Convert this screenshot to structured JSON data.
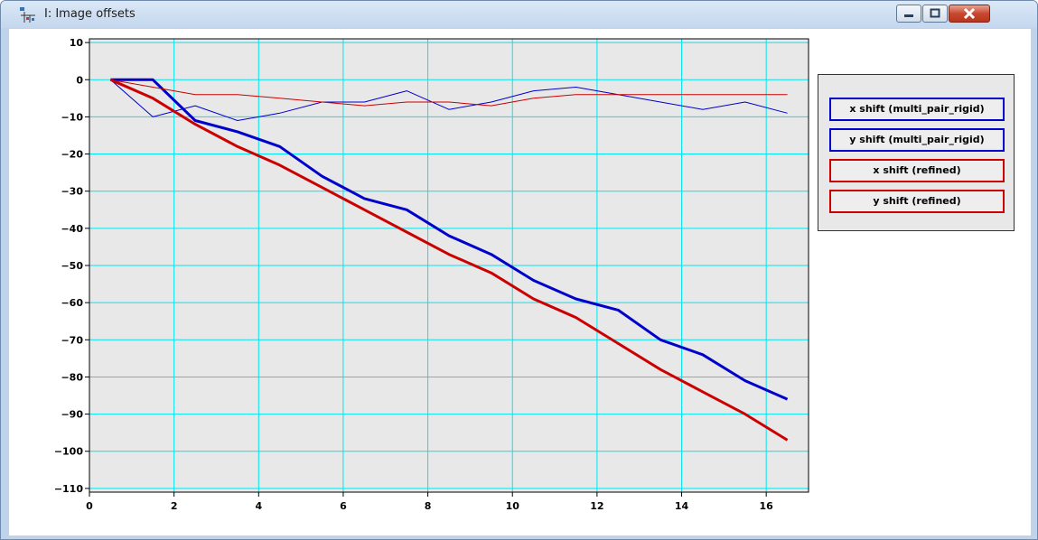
{
  "window": {
    "title": "I: Image offsets"
  },
  "colors": {
    "plot_background": "#e8e8e8",
    "grid": "#00e6f0",
    "blue": "#0000cc",
    "red": "#cc0000"
  },
  "chart_data": {
    "type": "line",
    "title": "",
    "xlabel": "",
    "ylabel": "",
    "xlim": [
      0,
      17
    ],
    "ylim": [
      -111,
      11
    ],
    "grid": true,
    "legend_position": "right",
    "x_ticks": [
      "0",
      "2",
      "4",
      "6",
      "8",
      "10",
      "12",
      "14",
      "16"
    ],
    "y_ticks": [
      "10",
      "0",
      "−10",
      "−20",
      "−30",
      "−40",
      "−50",
      "−60",
      "−70",
      "−80",
      "−90",
      "−100",
      "−110"
    ],
    "x_tick_values": [
      0,
      2,
      4,
      6,
      8,
      10,
      12,
      14,
      16
    ],
    "y_tick_values": [
      10,
      0,
      -10,
      -20,
      -30,
      -40,
      -50,
      -60,
      -70,
      -80,
      -90,
      -100,
      -110
    ],
    "x": [
      0.5,
      1.5,
      2.5,
      3.5,
      4.5,
      5.5,
      6.5,
      7.5,
      8.5,
      9.5,
      10.5,
      11.5,
      12.5,
      13.5,
      14.5,
      15.5,
      16.5
    ],
    "series": [
      {
        "name": "x shift (multi_pair_rigid)",
        "color": "#0000cc",
        "width": 1,
        "values": [
          0,
          -10,
          -7,
          -11,
          -9,
          -6,
          -6,
          -3,
          -8,
          -6,
          -3,
          -2,
          -4,
          -6,
          -8,
          -6,
          -9
        ]
      },
      {
        "name": "y shift (multi_pair_rigid)",
        "color": "#0000cc",
        "width": 3,
        "values": [
          0,
          0,
          -11,
          -14,
          -18,
          -26,
          -32,
          -35,
          -42,
          -47,
          -54,
          -59,
          -62,
          -70,
          -74,
          -81,
          -86
        ]
      },
      {
        "name": "x shift (refined)",
        "color": "#cc0000",
        "width": 1,
        "values": [
          0,
          -2,
          -4,
          -4,
          -5,
          -6,
          -7,
          -6,
          -6,
          -7,
          -5,
          -4,
          -4,
          -4,
          -4,
          -4,
          -4
        ]
      },
      {
        "name": "y shift (refined)",
        "color": "#cc0000",
        "width": 3,
        "values": [
          0,
          -5,
          -12,
          -18,
          -23,
          -29,
          -35,
          -41,
          -47,
          -52,
          -59,
          -64,
          -71,
          -78,
          -84,
          -90,
          -97
        ]
      }
    ]
  }
}
